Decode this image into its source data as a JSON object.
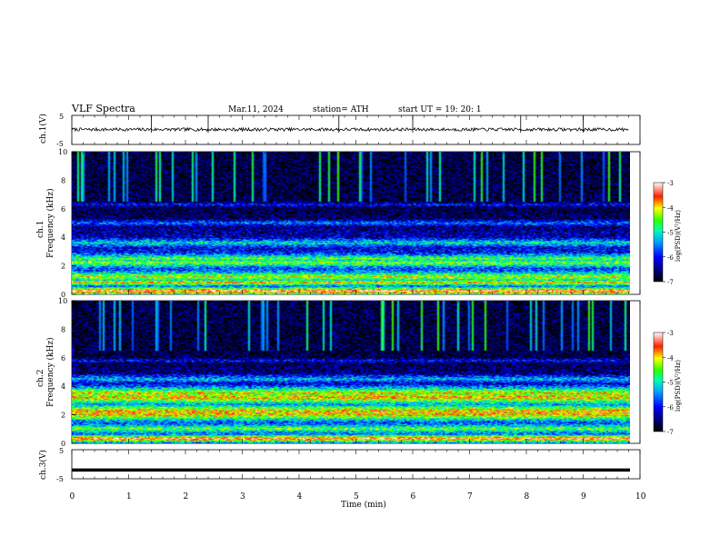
{
  "header": {
    "title": "VLF  Spectra",
    "date": "Mar.11, 2024",
    "station": "station= ATH",
    "start": "start  UT  =    19: 20: 1"
  },
  "chart_data": [
    {
      "type": "line",
      "panel": "ch1-waveform",
      "ylabel": "ch.1(V)",
      "yticks": [
        "5",
        "-5"
      ],
      "ylim": [
        -5,
        5
      ],
      "x": [
        0,
        1,
        2,
        3,
        4,
        5,
        6,
        7,
        8,
        9,
        9.8
      ],
      "y": [
        0.2,
        0.1,
        0.0,
        0.2,
        0.1,
        0.0,
        0.1,
        0.2,
        0.1,
        0.0,
        0.1
      ]
    },
    {
      "type": "heatmap",
      "panel": "ch1-spectrogram",
      "ylabel_top": "ch.1",
      "ylabel": "Frequency  (kHz)",
      "yticks": [
        "0",
        "2",
        "4",
        "6",
        "8",
        "10"
      ],
      "ylim": [
        0,
        10
      ],
      "colorbar": {
        "label": "log(PSD)(V²/Hz)",
        "ticks": [
          "-3",
          "-4",
          "-5",
          "-6",
          "-7"
        ],
        "range": [
          -7,
          -3
        ]
      },
      "bands_khz": [
        {
          "f": 0.2,
          "level": -3.2
        },
        {
          "f": 0.8,
          "level": -3.8
        },
        {
          "f": 1.2,
          "level": -4.2
        },
        {
          "f": 2.2,
          "level": -4.4
        },
        {
          "f": 2.5,
          "level": -4.6
        },
        {
          "f": 3.6,
          "level": -5.0
        },
        {
          "f": 5.0,
          "level": -5.6
        },
        {
          "f": 6.3,
          "level": -6.0
        }
      ]
    },
    {
      "type": "heatmap",
      "panel": "ch2-spectrogram",
      "ylabel_top": "ch.2",
      "ylabel": "Frequency  (kHz)",
      "yticks": [
        "0",
        "2",
        "4",
        "6",
        "8",
        "10"
      ],
      "ylim": [
        0,
        10
      ],
      "colorbar": {
        "label": "log(PSD)(V²/Hz)",
        "ticks": [
          "-3",
          "-4",
          "-5",
          "-6",
          "-7"
        ],
        "range": [
          -7,
          -3
        ]
      },
      "bands_khz": [
        {
          "f": 0.3,
          "level": -3.3
        },
        {
          "f": 1.0,
          "level": -4.5
        },
        {
          "f": 2.0,
          "level": -3.9
        },
        {
          "f": 2.2,
          "level": -3.7
        },
        {
          "f": 3.2,
          "level": -3.8
        },
        {
          "f": 3.5,
          "level": -4.0
        },
        {
          "f": 4.5,
          "level": -5.2
        },
        {
          "f": 5.8,
          "level": -6.0
        }
      ]
    },
    {
      "type": "line",
      "panel": "ch3-waveform",
      "ylabel": "ch.3(V)",
      "yticks": [
        "5",
        "-5"
      ],
      "ylim": [
        -5,
        5
      ],
      "x": [
        0,
        9.8
      ],
      "y": [
        -2.0,
        -2.0
      ]
    }
  ],
  "xaxis": {
    "label": "Time  (min)",
    "ticks": [
      "0",
      "1",
      "2",
      "3",
      "4",
      "5",
      "6",
      "7",
      "8",
      "9",
      "10"
    ],
    "xlim": [
      0,
      10
    ]
  },
  "colors": {
    "background": "#ffffff",
    "trace": "#000000"
  }
}
